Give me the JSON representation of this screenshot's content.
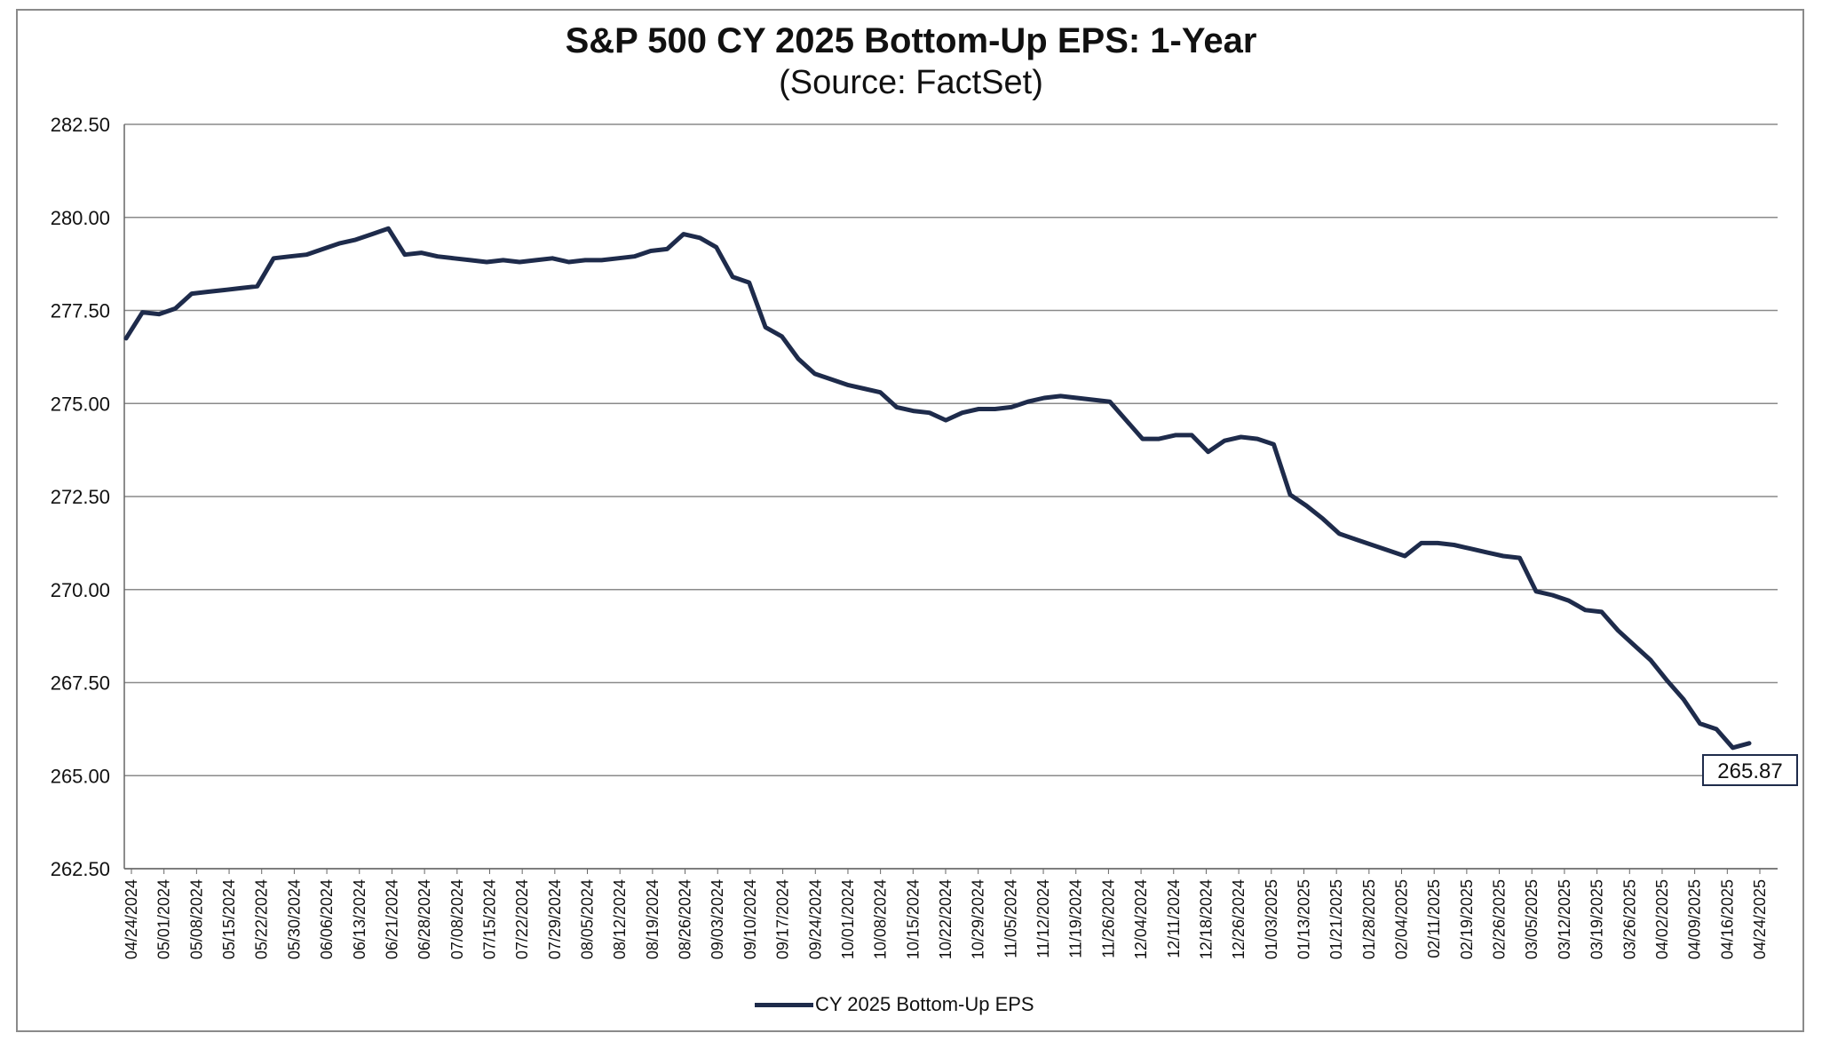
{
  "chart_data": {
    "type": "line",
    "title": "S&P 500 CY 2025 Bottom-Up  EPS: 1-Year",
    "subtitle": "(Source: FactSet)",
    "xlabel": "",
    "ylabel": "",
    "ylim": [
      262.5,
      282.5
    ],
    "yticks": [
      "262.50",
      "265.00",
      "267.50",
      "270.00",
      "272.50",
      "275.00",
      "277.50",
      "280.00",
      "282.50"
    ],
    "xticks": [
      "04/24/2024",
      "05/01/2024",
      "05/08/2024",
      "05/15/2024",
      "05/22/2024",
      "05/30/2024",
      "06/06/2024",
      "06/13/2024",
      "06/21/2024",
      "06/28/2024",
      "07/08/2024",
      "07/15/2024",
      "07/22/2024",
      "07/29/2024",
      "08/05/2024",
      "08/12/2024",
      "08/19/2024",
      "08/26/2024",
      "09/03/2024",
      "09/10/2024",
      "09/17/2024",
      "09/24/2024",
      "10/01/2024",
      "10/08/2024",
      "10/15/2024",
      "10/22/2024",
      "10/29/2024",
      "11/05/2024",
      "11/12/2024",
      "11/19/2024",
      "11/26/2024",
      "12/04/2024",
      "12/11/2024",
      "12/18/2024",
      "12/26/2024",
      "01/03/2025",
      "01/13/2025",
      "01/21/2025",
      "01/28/2025",
      "02/04/2025",
      "02/11/2025",
      "02/19/2025",
      "02/26/2025",
      "03/05/2025",
      "03/12/2025",
      "03/19/2025",
      "03/26/2025",
      "04/02/2025",
      "04/09/2025",
      "04/16/2025",
      "04/24/2025"
    ],
    "grid": true,
    "legend_position": "bottom",
    "series": [
      {
        "name": "CY 2025 Bottom-Up EPS",
        "color": "#1e2b4b",
        "values": [
          276.75,
          277.45,
          277.4,
          277.55,
          277.95,
          278.0,
          278.05,
          278.1,
          278.15,
          278.9,
          278.95,
          279.0,
          279.15,
          279.3,
          279.4,
          279.55,
          279.7,
          279.0,
          279.05,
          278.95,
          278.9,
          278.85,
          278.8,
          278.85,
          278.8,
          278.85,
          278.9,
          278.8,
          278.85,
          278.85,
          278.9,
          278.95,
          279.1,
          279.15,
          279.55,
          279.45,
          279.2,
          278.4,
          278.25,
          277.05,
          276.8,
          276.2,
          275.8,
          275.65,
          275.5,
          275.4,
          275.3,
          274.9,
          274.8,
          274.75,
          274.55,
          274.75,
          274.85,
          274.85,
          274.9,
          275.05,
          275.15,
          275.2,
          275.15,
          275.1,
          275.05,
          274.55,
          274.05,
          274.05,
          274.15,
          274.15,
          273.7,
          274.0,
          274.1,
          274.05,
          273.9,
          272.55,
          272.25,
          271.9,
          271.5,
          271.35,
          271.2,
          271.05,
          270.9,
          271.25,
          271.25,
          271.2,
          271.1,
          271.0,
          270.9,
          270.85,
          269.95,
          269.85,
          269.7,
          269.45,
          269.4,
          268.9,
          268.5,
          268.1,
          267.55,
          267.05,
          266.4,
          266.25,
          265.75,
          265.87
        ]
      }
    ],
    "callout": "265.87"
  }
}
